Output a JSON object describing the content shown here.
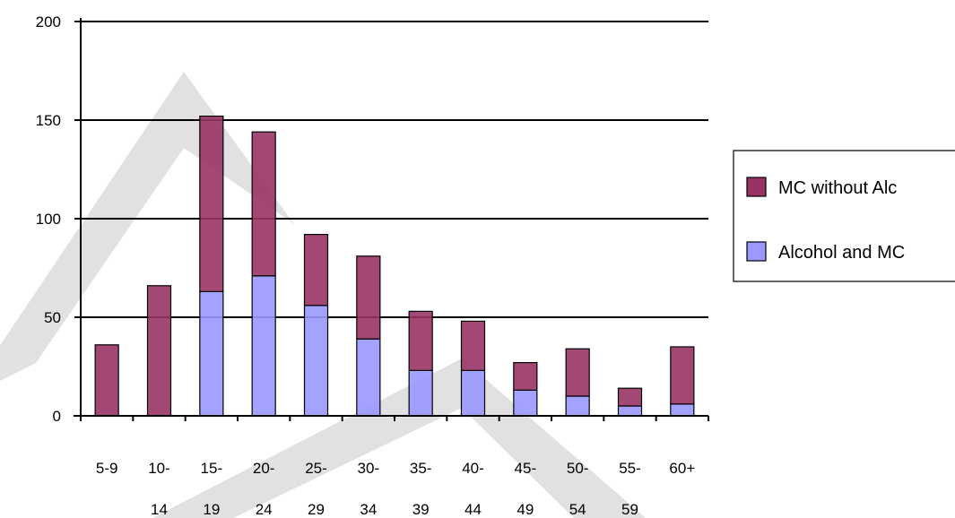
{
  "chart_data": {
    "type": "bar",
    "stacked": true,
    "categories": [
      "5-9",
      "10-14",
      "15-19",
      "20-24",
      "25-29",
      "30-34",
      "35-39",
      "40-44",
      "45-49",
      "50-54",
      "55-59",
      "60+"
    ],
    "category_lines": [
      [
        "5-9",
        ""
      ],
      [
        "10-",
        "14"
      ],
      [
        "15-",
        "19"
      ],
      [
        "20-",
        "24"
      ],
      [
        "25-",
        "29"
      ],
      [
        "30-",
        "34"
      ],
      [
        "35-",
        "39"
      ],
      [
        "40-",
        "44"
      ],
      [
        "45-",
        "49"
      ],
      [
        "50-",
        "54"
      ],
      [
        "55-",
        "59"
      ],
      [
        "60+",
        ""
      ]
    ],
    "series": [
      {
        "name": "Alcohol and MC",
        "color": "#9999ff",
        "values": [
          0,
          0,
          63,
          71,
          56,
          39,
          23,
          23,
          13,
          10,
          5,
          6
        ]
      },
      {
        "name": "MC without Alc",
        "color": "#993366",
        "values": [
          36,
          66,
          89,
          73,
          36,
          42,
          30,
          25,
          14,
          24,
          9,
          29
        ]
      }
    ],
    "legend_order": [
      "MC without Alc",
      "Alcohol and MC"
    ],
    "legend_position": "right",
    "ylim": [
      0,
      200
    ],
    "yticks": [
      0,
      50,
      100,
      150,
      200
    ],
    "grid": true,
    "gridline_color": "#000000",
    "watermark_color": "#c8c8c8"
  }
}
